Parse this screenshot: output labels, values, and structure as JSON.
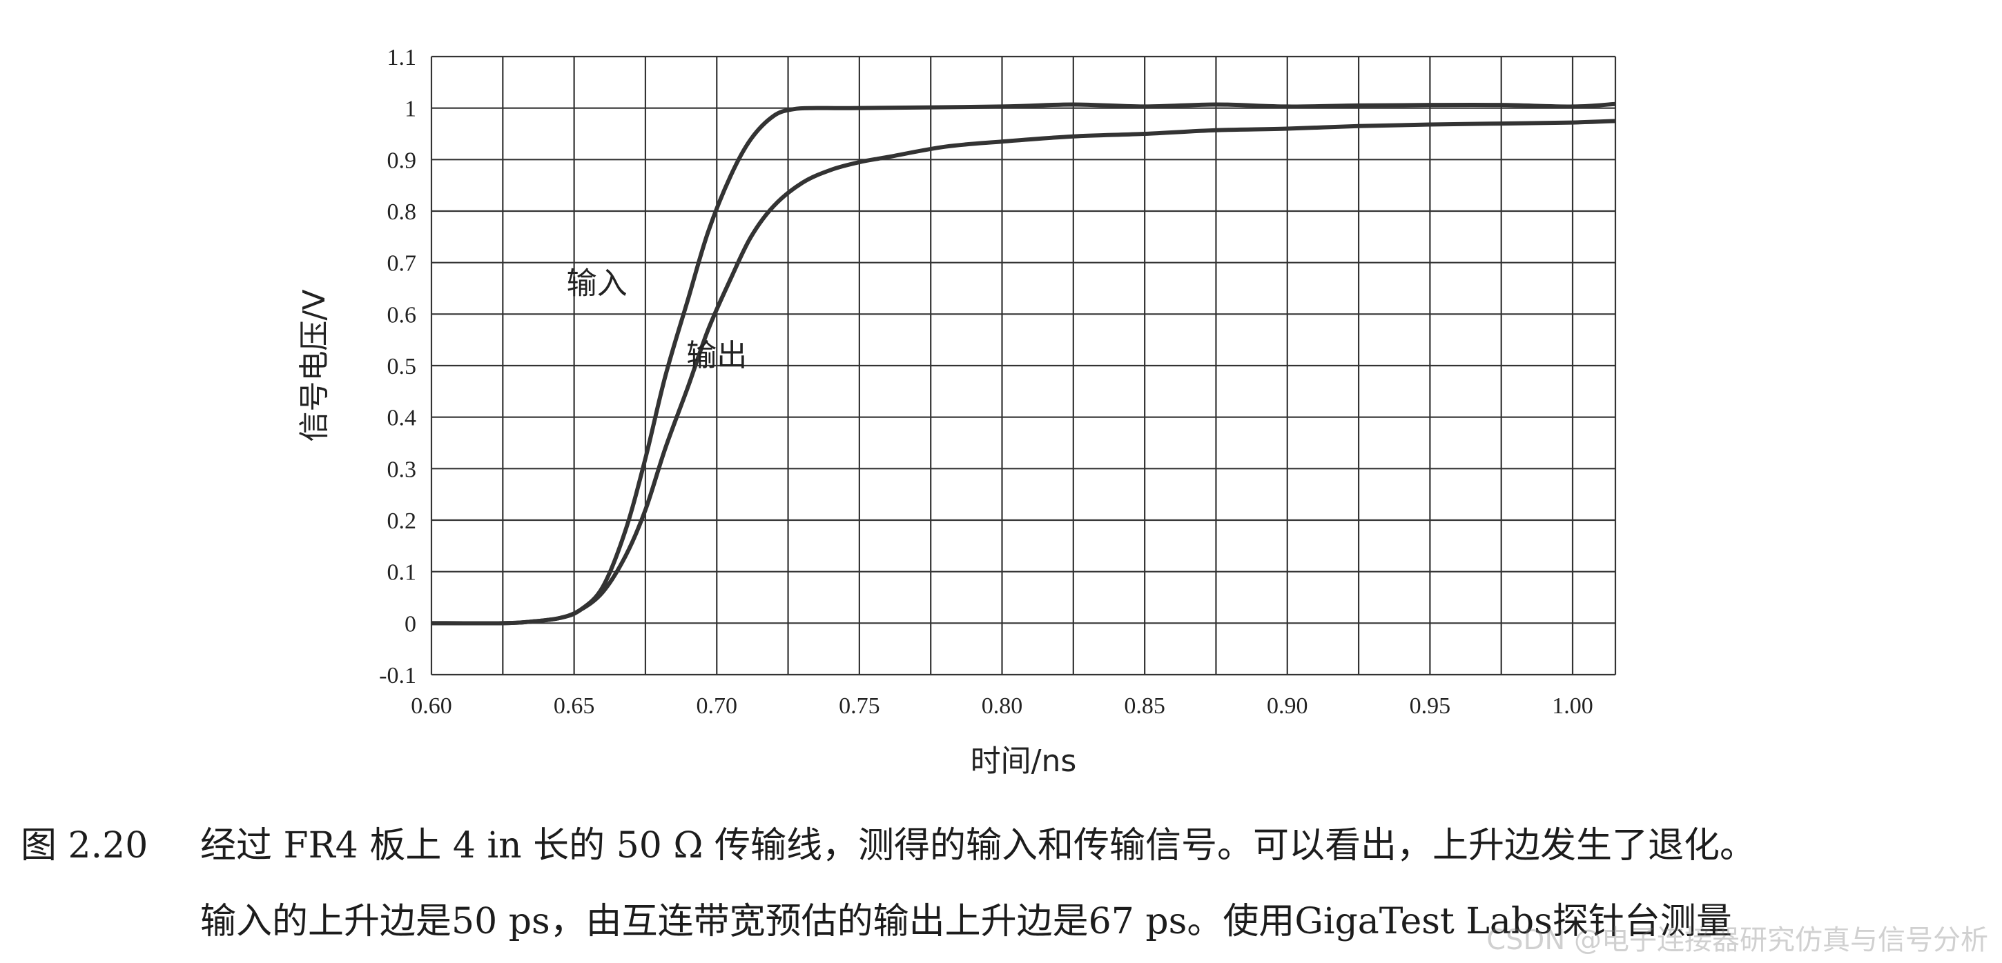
{
  "chart_data": {
    "type": "line",
    "title": "",
    "xlabel": "时间/ns",
    "ylabel": "信号电压/V",
    "xlim": [
      0.6,
      1.015
    ],
    "ylim": [
      -0.1,
      1.1
    ],
    "xticks": [
      "0.60",
      "0.65",
      "0.70",
      "0.75",
      "0.80",
      "0.85",
      "0.90",
      "0.95",
      "1.00"
    ],
    "yticks": [
      "-0.1",
      "0",
      "0.1",
      "0.2",
      "0.3",
      "0.4",
      "0.5",
      "0.6",
      "0.7",
      "0.8",
      "0.9",
      "1",
      "1.1"
    ],
    "grid": true,
    "series": [
      {
        "name": "输入",
        "color": "#333333",
        "x": [
          0.6,
          0.625,
          0.635,
          0.645,
          0.652,
          0.66,
          0.668,
          0.675,
          0.682,
          0.69,
          0.697,
          0.705,
          0.712,
          0.72,
          0.727,
          0.735,
          0.75,
          0.8,
          0.825,
          0.85,
          0.875,
          0.9,
          0.925,
          0.95,
          0.975,
          1.0,
          1.015
        ],
        "y": [
          0.0,
          0.0,
          0.003,
          0.01,
          0.025,
          0.07,
          0.18,
          0.32,
          0.48,
          0.63,
          0.76,
          0.87,
          0.94,
          0.985,
          0.998,
          1.0,
          1.0,
          1.003,
          1.007,
          1.003,
          1.007,
          1.003,
          1.005,
          1.006,
          1.006,
          1.003,
          1.008
        ]
      },
      {
        "name": "输出",
        "color": "#333333",
        "x": [
          0.6,
          0.625,
          0.635,
          0.645,
          0.652,
          0.66,
          0.668,
          0.675,
          0.682,
          0.69,
          0.697,
          0.705,
          0.712,
          0.72,
          0.73,
          0.74,
          0.75,
          0.76,
          0.78,
          0.8,
          0.825,
          0.85,
          0.875,
          0.9,
          0.925,
          0.95,
          0.975,
          1.0,
          1.015
        ],
        "y": [
          0.0,
          0.0,
          0.003,
          0.01,
          0.025,
          0.06,
          0.13,
          0.22,
          0.34,
          0.46,
          0.57,
          0.67,
          0.75,
          0.81,
          0.855,
          0.88,
          0.895,
          0.905,
          0.925,
          0.935,
          0.945,
          0.95,
          0.957,
          0.96,
          0.965,
          0.968,
          0.97,
          0.972,
          0.975
        ]
      }
    ],
    "annotations": [
      {
        "text": "输入",
        "x": 0.658,
        "y": 0.64
      },
      {
        "text": "输出",
        "x": 0.7,
        "y": 0.5
      }
    ]
  },
  "caption": {
    "figure_number": "图 2.20",
    "line1": "经过 FR4 板上 4 in 长的 50 Ω 传输线，测得的输入和传输信号。可以看出，上升边发生了退化。",
    "line2": "输入的上升边是50 ps，由互连带宽预估的输出上升边是67 ps。使用GigaTest Labs探针台测量"
  },
  "watermark": "CSDN @电子连接器研究仿真与信号分析"
}
